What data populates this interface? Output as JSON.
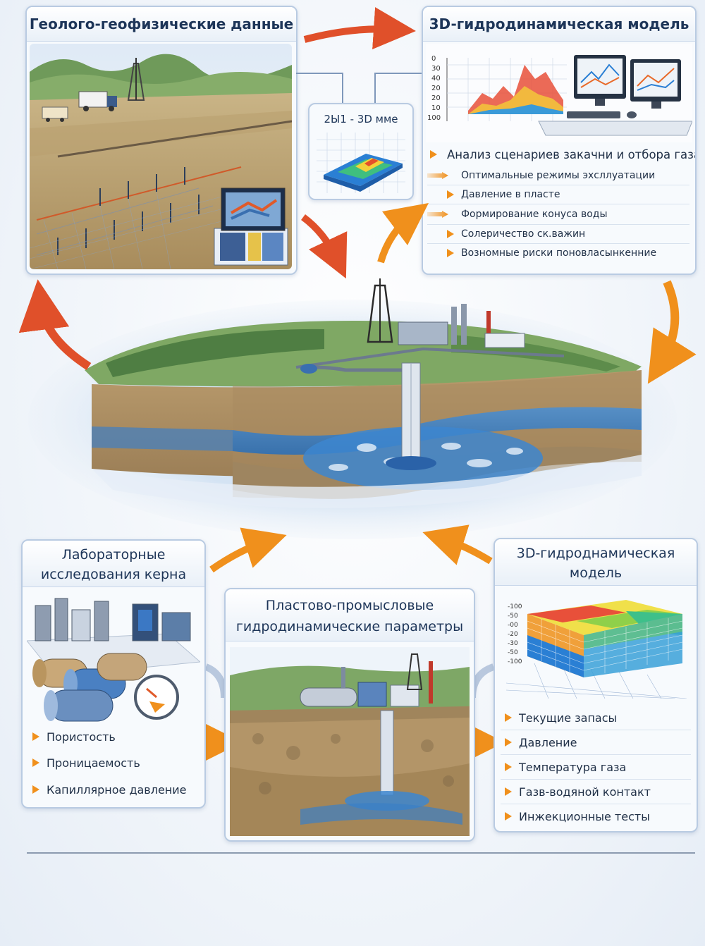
{
  "cards": {
    "geo": {
      "title": "Геолого-геофизические данные"
    },
    "model_top": {
      "title": "3D-гидродинамическая модель",
      "chart_ticks": [
        "0",
        "30",
        "40",
        "20",
        "20",
        "10",
        "100"
      ],
      "lead": "Анализ сценариев закачни и отбора газа",
      "items": [
        "Оптимальные режимы эхсллуатации",
        "Давление в пласте",
        "Формирование конуса воды",
        "Солеричество ск.важин",
        "Возномные риски поновласынкенние"
      ]
    },
    "mini_3d": {
      "title": "2Ы1 - 3D мме"
    },
    "lab": {
      "title_line1": "Лабораторные",
      "title_line2": "исследования керна",
      "items": [
        "Пористость",
        "Проницаемость",
        "Капиллярное давление"
      ]
    },
    "params": {
      "title_line1": "Пластово-промысловые",
      "title_line2": "гидродинамические параметры"
    },
    "model_bottom": {
      "title_line1": "3D-гидроднамическая",
      "title_line2": "модель",
      "axis_labels": [
        "-100",
        "-50",
        "-00",
        "-20",
        "-30",
        "-50",
        "-100"
      ],
      "items": [
        "Текущие запасы",
        "Давление",
        "Температура газа",
        "Газв-водяной контакт",
        "Инжекционные тесты"
      ]
    }
  },
  "colors": {
    "accent_orange": "#f0901c",
    "arrow_red": "#e0502a",
    "title_blue": "#1d3558",
    "border": "#b9cbe2"
  }
}
